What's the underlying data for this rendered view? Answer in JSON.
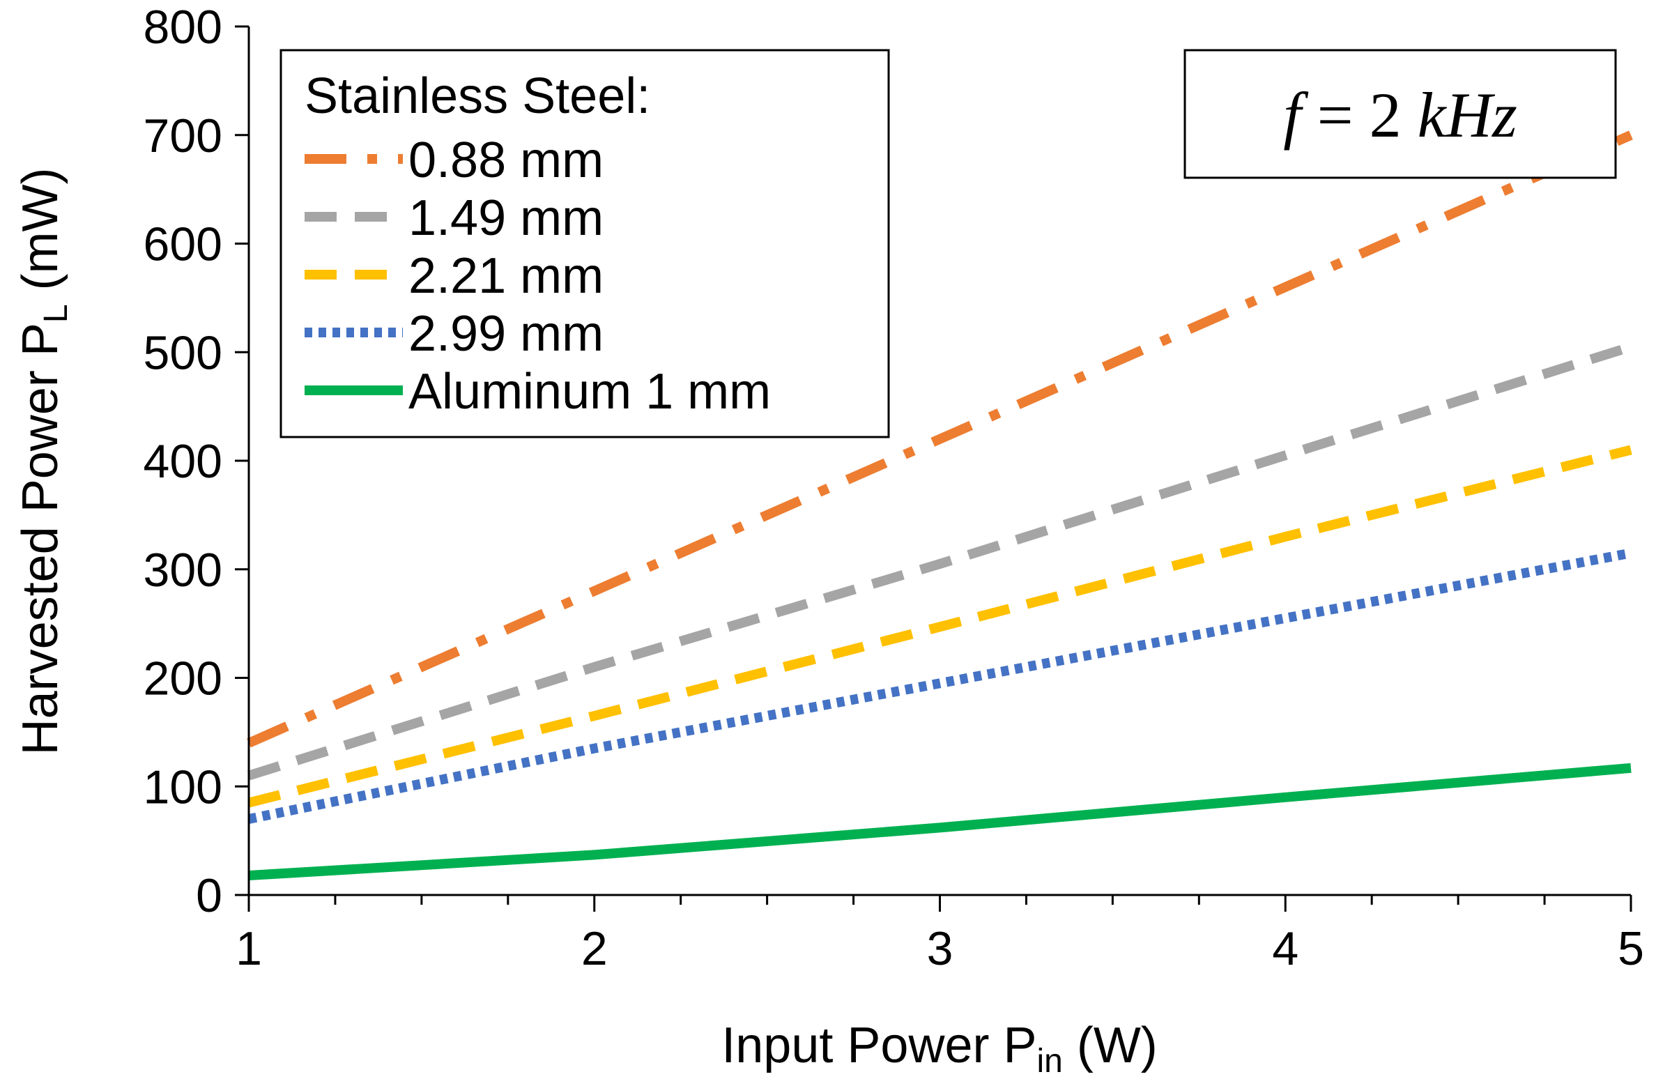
{
  "chart_data": {
    "type": "line",
    "title": "",
    "xlabel": {
      "main": "Input Power P",
      "sub": "in",
      "unit": " (W)"
    },
    "ylabel": {
      "main": "Harvested Power P",
      "sub": "L",
      "unit": " (mW)"
    },
    "xlim": [
      1,
      5
    ],
    "ylim": [
      0,
      800
    ],
    "xticks": [
      1,
      2,
      3,
      4,
      5
    ],
    "yticks": [
      0,
      100,
      200,
      300,
      400,
      500,
      600,
      700,
      800
    ],
    "x_minor_step": 0.25,
    "grid": false,
    "legend_position": "top-left",
    "legend_title": "Stainless Steel:",
    "annotation": {
      "italic_f": "f",
      "equals": " = 2 ",
      "unit": "kHz"
    },
    "series": [
      {
        "name": "0.88 mm",
        "color": "#ED7D31",
        "style": "dash-dot",
        "x": [
          1,
          2,
          3,
          4,
          5
        ],
        "y": [
          140,
          280,
          420,
          560,
          700
        ]
      },
      {
        "name": "1.49 mm",
        "color": "#A5A5A5",
        "style": "dash",
        "x": [
          1,
          2,
          3,
          4,
          5
        ],
        "y": [
          110,
          210,
          305,
          405,
          505
        ]
      },
      {
        "name": "2.21 mm",
        "color": "#FFC000",
        "style": "dash",
        "x": [
          1,
          2,
          3,
          4,
          5
        ],
        "y": [
          85,
          165,
          247,
          330,
          410
        ]
      },
      {
        "name": "2.99 mm",
        "color": "#4472C4",
        "style": "dot",
        "x": [
          1,
          2,
          3,
          4,
          5
        ],
        "y": [
          70,
          135,
          195,
          255,
          315
        ]
      },
      {
        "name": "Aluminum 1 mm",
        "color": "#00B050",
        "style": "solid",
        "x": [
          1,
          2,
          3,
          4,
          5
        ],
        "y": [
          18,
          37,
          62,
          90,
          117
        ]
      }
    ]
  }
}
